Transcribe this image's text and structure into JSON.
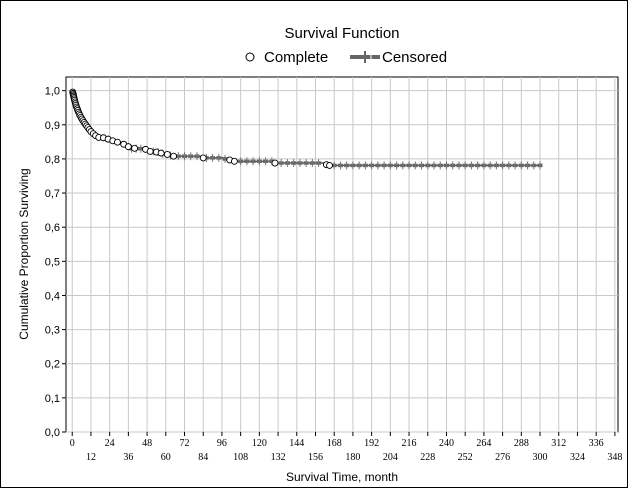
{
  "chart_data": {
    "type": "line",
    "title": "Survival Function",
    "xlabel": "Survival Time, month",
    "ylabel": "Cumulative Proportion Surviving",
    "xlim": [
      -4,
      350
    ],
    "ylim": [
      0,
      1.04
    ],
    "grid": true,
    "legend": {
      "position": "top",
      "complete_label": "Complete",
      "censored_label": "Censored"
    },
    "x_ticks_upper": [
      "0",
      "24",
      "48",
      "72",
      "96",
      "120",
      "144",
      "168",
      "192",
      "216",
      "240",
      "264",
      "288",
      "312",
      "336"
    ],
    "x_ticks_lower": [
      "12",
      "36",
      "60",
      "84",
      "108",
      "132",
      "156",
      "180",
      "204",
      "228",
      "252",
      "276",
      "300",
      "324",
      "348"
    ],
    "y_ticks": [
      "0,0",
      "0,1",
      "0,2",
      "0,3",
      "0,4",
      "0,5",
      "0,6",
      "0,7",
      "0,8",
      "0,9",
      "1,0"
    ],
    "series": [
      {
        "name": "Complete",
        "marker": "open-circle",
        "points": [
          [
            0.3,
            0.996
          ],
          [
            0.5,
            0.992
          ],
          [
            0.7,
            0.988
          ],
          [
            0.9,
            0.984
          ],
          [
            1.1,
            0.98
          ],
          [
            1.3,
            0.976
          ],
          [
            1.5,
            0.972
          ],
          [
            1.8,
            0.967
          ],
          [
            2.1,
            0.962
          ],
          [
            2.4,
            0.957
          ],
          [
            2.8,
            0.952
          ],
          [
            3.2,
            0.947
          ],
          [
            3.6,
            0.942
          ],
          [
            4.0,
            0.937
          ],
          [
            4.5,
            0.932
          ],
          [
            5.0,
            0.927
          ],
          [
            5.6,
            0.922
          ],
          [
            6.2,
            0.917
          ],
          [
            6.9,
            0.912
          ],
          [
            7.6,
            0.907
          ],
          [
            8.4,
            0.902
          ],
          [
            9.2,
            0.897
          ],
          [
            10.0,
            0.892
          ],
          [
            11.0,
            0.886
          ],
          [
            12.0,
            0.88
          ],
          [
            13.5,
            0.874
          ],
          [
            15.0,
            0.868
          ],
          [
            17.0,
            0.863
          ],
          [
            20.0,
            0.862
          ],
          [
            23.0,
            0.858
          ],
          [
            26.0,
            0.853
          ],
          [
            29.0,
            0.849
          ],
          [
            33.0,
            0.843
          ],
          [
            36.0,
            0.836
          ],
          [
            40.0,
            0.831
          ],
          [
            47.0,
            0.828
          ],
          [
            50.0,
            0.822
          ],
          [
            54.0,
            0.82
          ],
          [
            57.0,
            0.817
          ],
          [
            61.0,
            0.813
          ],
          [
            65.0,
            0.808
          ],
          [
            84.0,
            0.803
          ],
          [
            101.0,
            0.797
          ],
          [
            104.0,
            0.793
          ],
          [
            130.0,
            0.788
          ],
          [
            163.0,
            0.783
          ],
          [
            165.0,
            0.781
          ]
        ]
      },
      {
        "name": "Censored",
        "marker": "plus-tick",
        "points": [
          [
            38.0,
            0.83
          ],
          [
            41.0,
            0.83
          ],
          [
            44.0,
            0.83
          ],
          [
            52.0,
            0.822
          ],
          [
            55.0,
            0.82
          ],
          [
            58.0,
            0.815
          ],
          [
            63.0,
            0.81
          ],
          [
            68.0,
            0.808
          ],
          [
            72.0,
            0.808
          ],
          [
            76.0,
            0.808
          ],
          [
            80.0,
            0.808
          ],
          [
            86.0,
            0.803
          ],
          [
            90.0,
            0.803
          ],
          [
            94.0,
            0.803
          ],
          [
            98.0,
            0.8
          ],
          [
            108.0,
            0.793
          ],
          [
            112.0,
            0.793
          ],
          [
            116.0,
            0.793
          ],
          [
            120.0,
            0.793
          ],
          [
            124.0,
            0.793
          ],
          [
            128.0,
            0.793
          ],
          [
            134.0,
            0.788
          ],
          [
            138.0,
            0.788
          ],
          [
            142.0,
            0.788
          ],
          [
            146.0,
            0.788
          ],
          [
            150.0,
            0.788
          ],
          [
            154.0,
            0.788
          ],
          [
            158.0,
            0.788
          ],
          [
            168.0,
            0.781
          ],
          [
            172.0,
            0.781
          ],
          [
            176.0,
            0.781
          ],
          [
            180.0,
            0.781
          ],
          [
            184.0,
            0.781
          ],
          [
            188.0,
            0.781
          ],
          [
            192.0,
            0.781
          ],
          [
            196.0,
            0.781
          ],
          [
            200.0,
            0.781
          ],
          [
            204.0,
            0.781
          ],
          [
            208.0,
            0.781
          ],
          [
            212.0,
            0.781
          ],
          [
            216.0,
            0.781
          ],
          [
            220.0,
            0.781
          ],
          [
            224.0,
            0.781
          ],
          [
            228.0,
            0.781
          ],
          [
            232.0,
            0.781
          ],
          [
            236.0,
            0.781
          ],
          [
            240.0,
            0.781
          ],
          [
            244.0,
            0.781
          ],
          [
            248.0,
            0.781
          ],
          [
            252.0,
            0.781
          ],
          [
            256.0,
            0.781
          ],
          [
            260.0,
            0.781
          ],
          [
            264.0,
            0.781
          ],
          [
            268.0,
            0.781
          ],
          [
            272.0,
            0.781
          ],
          [
            276.0,
            0.781
          ],
          [
            280.0,
            0.781
          ],
          [
            284.0,
            0.781
          ],
          [
            288.0,
            0.781
          ],
          [
            292.0,
            0.781
          ],
          [
            296.0,
            0.781
          ],
          [
            300.0,
            0.781
          ]
        ]
      }
    ]
  }
}
